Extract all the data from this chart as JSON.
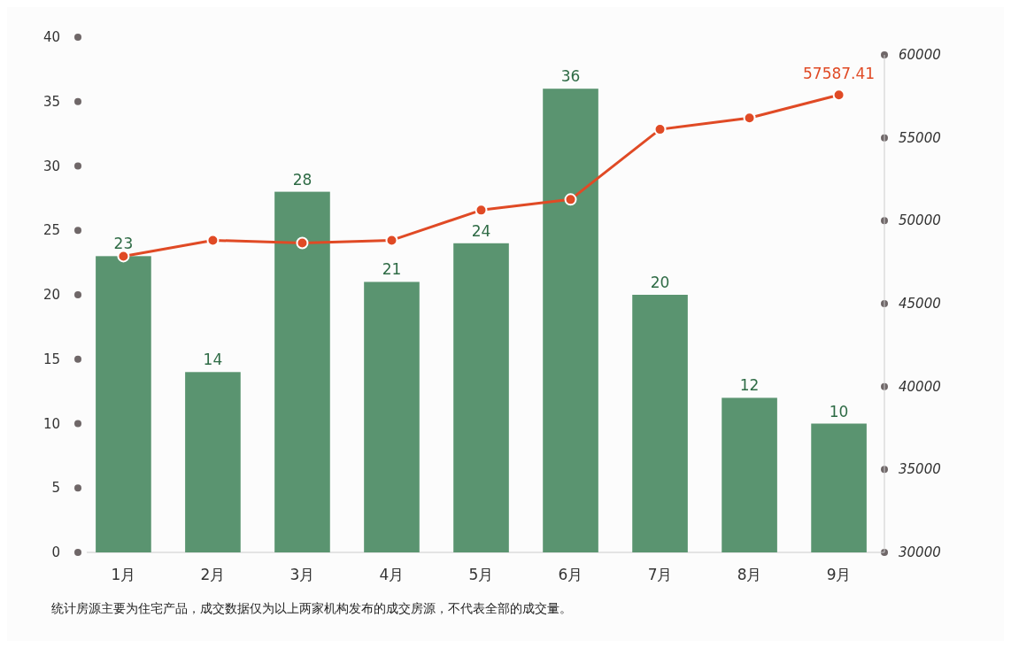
{
  "chart_data": {
    "type": "bar",
    "categories": [
      "1月",
      "2月",
      "3月",
      "4月",
      "5月",
      "6月",
      "7月",
      "8月",
      "9月"
    ],
    "series": [
      {
        "color": "#5a9470",
        "values": [
          23,
          14,
          28,
          21,
          24,
          36,
          20,
          12,
          10
        ],
        "value_labels": [
          "23",
          "14",
          "28",
          "21",
          "24",
          "36",
          "20",
          "12",
          "10"
        ]
      },
      {
        "type": "line",
        "axis": "y2",
        "color": "#e04a25",
        "values": [
          47860,
          48820,
          48660,
          48820,
          50640,
          51280,
          55510,
          56200,
          57587.41
        ],
        "value_labels": [
          null,
          null,
          null,
          null,
          null,
          null,
          null,
          null,
          "57587.41"
        ]
      }
    ],
    "ylim": [
      0,
      40
    ],
    "yticks": [
      0,
      5,
      10,
      15,
      20,
      25,
      30,
      35,
      40
    ],
    "y2lim": [
      30000,
      60000
    ],
    "y2ticks": [
      30000,
      35000,
      40000,
      45000,
      50000,
      55000,
      60000
    ],
    "marker": "circle",
    "line_style": "solid",
    "annotations": [
      "统计房源主要为住宅产品，成交数据仅为以上两家机构发布的成交房源，不代表全部的成交量。"
    ]
  }
}
